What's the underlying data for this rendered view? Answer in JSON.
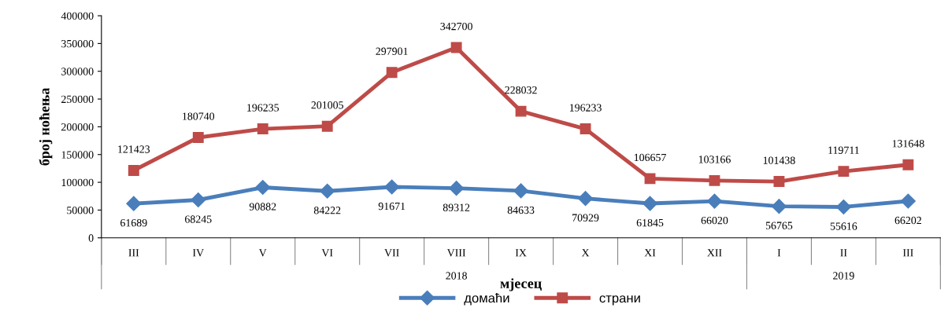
{
  "chart_data": {
    "type": "line",
    "ylabel": "број ноћења",
    "xlabel": "мјесец",
    "categories": [
      "III",
      "IV",
      "V",
      "VI",
      "VII",
      "VIII",
      "IX",
      "X",
      "XI",
      "XII",
      "I",
      "II",
      "III"
    ],
    "series": [
      {
        "name": "домаћи",
        "color": "#4a7ebb",
        "marker": "diamond",
        "values": [
          61689,
          68245,
          90882,
          84222,
          91671,
          89312,
          84633,
          70929,
          61845,
          66020,
          56765,
          55616,
          66202
        ]
      },
      {
        "name": "страни",
        "color": "#be4b48",
        "marker": "square",
        "values": [
          121423,
          180740,
          196235,
          201005,
          297901,
          342700,
          228032,
          196233,
          106657,
          103166,
          101438,
          119711,
          131648
        ]
      }
    ],
    "ylim": [
      0,
      400000
    ],
    "yticks": [
      0,
      50000,
      100000,
      150000,
      200000,
      250000,
      300000,
      350000,
      400000
    ],
    "annotations": [
      "2018",
      "2019"
    ],
    "data_labels": true,
    "grid": false,
    "legend": "bottom",
    "line_style": "solid"
  }
}
